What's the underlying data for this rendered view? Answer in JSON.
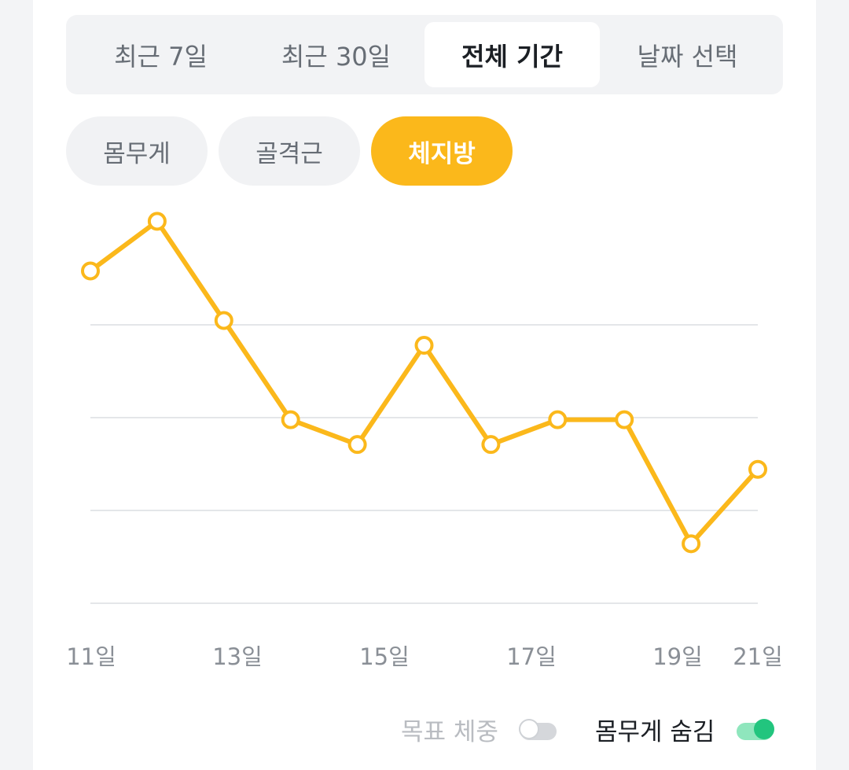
{
  "period_tabs": [
    {
      "label": "최근 7일",
      "active": false
    },
    {
      "label": "최근 30일",
      "active": false
    },
    {
      "label": "전체 기간",
      "active": true
    },
    {
      "label": "날짜 선택",
      "active": false
    }
  ],
  "metric_chips": [
    {
      "label": "몸무게",
      "active": false
    },
    {
      "label": "골격근",
      "active": false
    },
    {
      "label": "체지방",
      "active": true
    }
  ],
  "colors": {
    "accent": "#fbb81b",
    "line": "#fbb81b",
    "toggle_on": "#22c57e",
    "toggle_on_track": "#8fe6bd",
    "gridline": "#dcdee2"
  },
  "chart_data": {
    "type": "line",
    "x_tick_labels": [
      "11일",
      "13일",
      "15일",
      "17일",
      "19일",
      "21일"
    ],
    "series": [
      {
        "values": [
          29.4,
          31.4,
          27.4,
          23.4,
          22.4,
          26.4,
          22.4,
          23.4,
          23.4,
          18.4,
          21.4
        ]
      }
    ],
    "ylim": [
      16.0,
      31.0
    ],
    "grid": true
  },
  "toggles": {
    "goal_weight": {
      "label": "목표 체중",
      "on": false
    },
    "hide_weight": {
      "label": "몸무게 숨김",
      "on": true
    }
  }
}
